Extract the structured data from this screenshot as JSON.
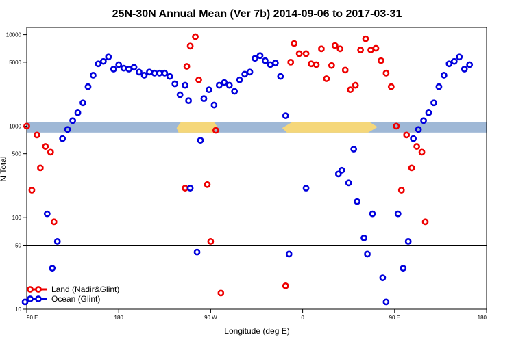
{
  "chart_data": {
    "type": "scatter",
    "title": "25N-30N Annual Mean (Ver 7b)   2014-09-06 to 2017-03-31",
    "xlabel": "Longitude (deg E)",
    "ylabel": "N Total",
    "xlim": [
      -90,
      180
    ],
    "ylim": [
      10,
      12000
    ],
    "y_scale": "log",
    "x_ticks": [
      {
        "value": -90,
        "label": "90 E"
      },
      {
        "value": -36,
        "label": "180"
      },
      {
        "value": 18,
        "label": "90 W"
      },
      {
        "value": 72,
        "label": "0"
      },
      {
        "value": 126,
        "label": "90 E"
      },
      {
        "value": 180,
        "label": "180"
      }
    ],
    "y_ticks": [
      {
        "value": 10,
        "label": "10"
      },
      {
        "value": 50,
        "label": "50"
      },
      {
        "value": 100,
        "label": "100"
      },
      {
        "value": 500,
        "label": "500"
      },
      {
        "value": 1000,
        "label": "1000"
      },
      {
        "value": 5000,
        "label": "5000"
      },
      {
        "value": 10000,
        "label": "10000"
      }
    ],
    "reference_line": 50,
    "land_band": {
      "y_low": 850,
      "y_high": 1100,
      "colors": {
        "ocean": "#9fb8d6",
        "land": "#f5d77a"
      }
    },
    "legend": {
      "position": "bottom-left"
    },
    "series": [
      {
        "name": "Land (Nadir&Glint)",
        "color": "#ee0000",
        "points": [
          [
            -90,
            1000
          ],
          [
            -87,
            200
          ],
          [
            -84,
            800
          ],
          [
            -82,
            350
          ],
          [
            -79,
            600
          ],
          [
            -76,
            520
          ],
          [
            -74,
            90
          ],
          [
            3,
            210
          ],
          [
            4,
            4500
          ],
          [
            6,
            7500
          ],
          [
            9,
            9500
          ],
          [
            11,
            3200
          ],
          [
            16,
            230
          ],
          [
            18,
            55
          ],
          [
            21,
            900
          ],
          [
            24,
            15
          ],
          [
            62,
            18
          ],
          [
            65,
            5000
          ],
          [
            67,
            8000
          ],
          [
            70,
            6200
          ],
          [
            74,
            6200
          ],
          [
            77,
            4800
          ],
          [
            80,
            4700
          ],
          [
            83,
            7000
          ],
          [
            86,
            3300
          ],
          [
            89,
            4600
          ],
          [
            91,
            7600
          ],
          [
            94,
            7000
          ],
          [
            97,
            4100
          ],
          [
            100,
            2500
          ],
          [
            103,
            2800
          ],
          [
            106,
            6800
          ],
          [
            109,
            9000
          ],
          [
            112,
            6800
          ],
          [
            115,
            7100
          ],
          [
            118,
            5200
          ],
          [
            121,
            3800
          ],
          [
            124,
            2700
          ],
          [
            127,
            1000
          ],
          [
            130,
            200
          ],
          [
            133,
            800
          ],
          [
            136,
            350
          ],
          [
            139,
            600
          ],
          [
            142,
            520
          ],
          [
            144,
            90
          ]
        ]
      },
      {
        "name": "Ocean (Glint)",
        "color": "#0000dd",
        "points": [
          [
            -91,
            12
          ],
          [
            -78,
            110
          ],
          [
            -75,
            28
          ],
          [
            -72,
            55
          ],
          [
            -69,
            730
          ],
          [
            -66,
            920
          ],
          [
            -63,
            1150
          ],
          [
            -60,
            1400
          ],
          [
            -57,
            1800
          ],
          [
            -54,
            2700
          ],
          [
            -51,
            3600
          ],
          [
            -48,
            4800
          ],
          [
            -45,
            5100
          ],
          [
            -42,
            5700
          ],
          [
            -39,
            4200
          ],
          [
            -36,
            4700
          ],
          [
            -33,
            4300
          ],
          [
            -30,
            4200
          ],
          [
            -27,
            4400
          ],
          [
            -24,
            3900
          ],
          [
            -21,
            3600
          ],
          [
            -18,
            3900
          ],
          [
            -15,
            3800
          ],
          [
            -12,
            3800
          ],
          [
            -9,
            3800
          ],
          [
            -6,
            3500
          ],
          [
            -3,
            2900
          ],
          [
            0,
            2200
          ],
          [
            3,
            2800
          ],
          [
            5,
            1900
          ],
          [
            6,
            210
          ],
          [
            10,
            42
          ],
          [
            12,
            700
          ],
          [
            14,
            2000
          ],
          [
            17,
            2500
          ],
          [
            20,
            1700
          ],
          [
            23,
            2800
          ],
          [
            26,
            3000
          ],
          [
            29,
            2800
          ],
          [
            32,
            2400
          ],
          [
            35,
            3200
          ],
          [
            38,
            3700
          ],
          [
            41,
            3900
          ],
          [
            44,
            5500
          ],
          [
            47,
            5900
          ],
          [
            50,
            5200
          ],
          [
            53,
            4700
          ],
          [
            56,
            4900
          ],
          [
            59,
            3500
          ],
          [
            62,
            1300
          ],
          [
            64,
            40
          ],
          [
            74,
            210
          ],
          [
            93,
            300
          ],
          [
            95,
            330
          ],
          [
            99,
            240
          ],
          [
            102,
            560
          ],
          [
            104,
            150
          ],
          [
            108,
            60
          ],
          [
            110,
            40
          ],
          [
            113,
            110
          ],
          [
            119,
            22
          ],
          [
            121,
            12
          ],
          [
            128,
            110
          ],
          [
            131,
            28
          ],
          [
            134,
            55
          ],
          [
            137,
            730
          ],
          [
            140,
            920
          ],
          [
            143,
            1150
          ],
          [
            146,
            1400
          ],
          [
            149,
            1800
          ],
          [
            152,
            2700
          ],
          [
            155,
            3600
          ],
          [
            158,
            4800
          ],
          [
            161,
            5100
          ],
          [
            164,
            5700
          ],
          [
            167,
            4200
          ],
          [
            170,
            4700
          ]
        ]
      }
    ]
  }
}
